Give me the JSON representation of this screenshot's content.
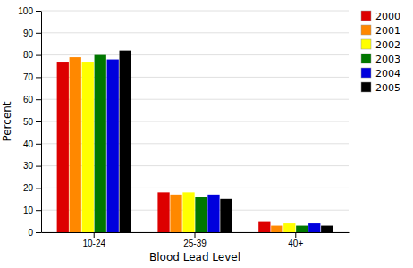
{
  "chart_data": {
    "type": "bar",
    "categories": [
      "10-24",
      "25-39",
      "40+"
    ],
    "series": [
      {
        "name": "2000",
        "color": "#dd0000",
        "values": [
          77,
          18,
          5
        ]
      },
      {
        "name": "2001",
        "color": "#ff8800",
        "values": [
          79,
          17,
          3
        ]
      },
      {
        "name": "2002",
        "color": "#ffff00",
        "values": [
          77,
          18,
          4
        ]
      },
      {
        "name": "2003",
        "color": "#007700",
        "values": [
          80,
          16,
          3
        ]
      },
      {
        "name": "2004",
        "color": "#0000dd",
        "values": [
          78,
          17,
          4
        ]
      },
      {
        "name": "2005",
        "color": "#000000",
        "values": [
          82,
          15,
          3
        ]
      }
    ],
    "xlabel": "Blood Lead Level",
    "ylabel": "Percent",
    "ylim": [
      0,
      100
    ],
    "yticks": [
      0,
      10,
      20,
      30,
      40,
      50,
      60,
      70,
      80,
      90,
      100
    ],
    "grid": true,
    "legend": "right"
  }
}
